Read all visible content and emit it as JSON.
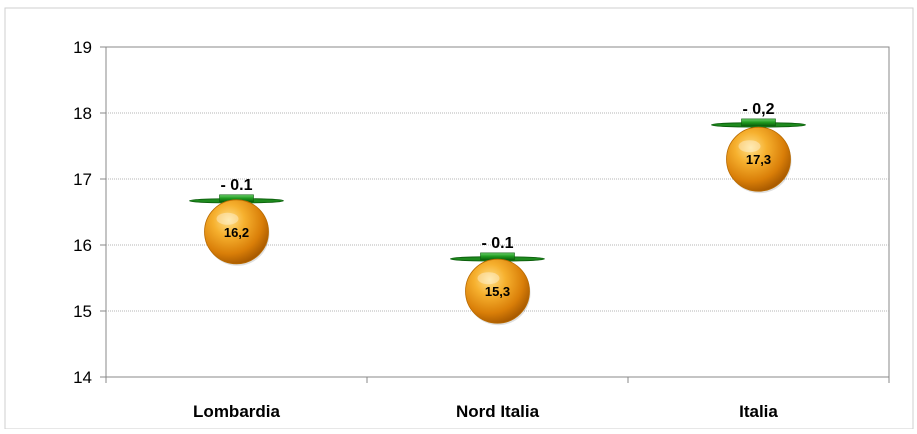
{
  "chart_data": {
    "type": "scatter",
    "title": "",
    "xlabel": "",
    "ylabel": "",
    "ylim": [
      14,
      19
    ],
    "yticks": [
      14,
      15,
      16,
      17,
      18,
      19
    ],
    "grid": true,
    "categories": [
      "Lombardia",
      "Nord Italia",
      "Italia"
    ],
    "series": [
      {
        "values": [
          16.2,
          15.3,
          17.3
        ],
        "labels": [
          "16,2",
          "15,3",
          "17,3"
        ],
        "color": "#F0A020"
      },
      {
        "values": [
          16.7,
          15.82,
          17.85
        ],
        "labels": [
          "- 0.1",
          "- 0.1",
          "- 0,2"
        ],
        "color": "#2E8B2E"
      }
    ]
  }
}
